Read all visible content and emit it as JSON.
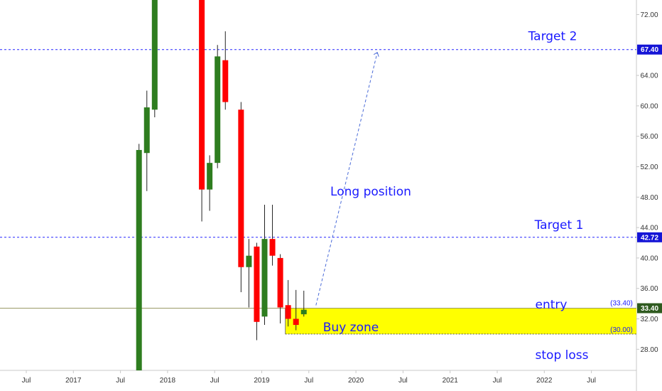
{
  "chart_data": {
    "type": "candlestick",
    "colors": {
      "up": "#2e7d1f",
      "down": "#ff0000",
      "level_line": "#2626ff",
      "annotation_text": "#1a1aff",
      "buy_zone_fill": "#ffff00",
      "price_line": "#999966",
      "badge_bg": "#1414d6",
      "current_badge_bg": "#2e5a1f"
    },
    "x_axis": {
      "ticks": [
        "Jul",
        "2017",
        "Jul",
        "2018",
        "Jul",
        "2019",
        "Jul",
        "2020",
        "Jul",
        "2021",
        "Jul",
        "2022",
        "Jul"
      ]
    },
    "y_axis": {
      "ticks": [
        "28.00",
        "32.00",
        "36.00",
        "40.00",
        "44.00",
        "48.00",
        "52.00",
        "56.00",
        "60.00",
        "64.00",
        "72.00"
      ],
      "range": [
        26,
        77
      ]
    },
    "candles": [
      {
        "x": "2017-09",
        "open": 10.0,
        "close": 54.2,
        "high": 55.0,
        "low": 10.0
      },
      {
        "x": "2017-10",
        "open": 53.8,
        "close": 59.8,
        "high": 62.0,
        "low": 48.8
      },
      {
        "x": "2017-11",
        "open": 59.5,
        "close": 80.0,
        "high": 82.0,
        "low": 58.5
      },
      {
        "x": "2018-05",
        "open": 76.0,
        "close": 49.0,
        "high": 78.0,
        "low": 44.8
      },
      {
        "x": "2018-06",
        "open": 49.0,
        "close": 52.5,
        "high": 53.5,
        "low": 46.2
      },
      {
        "x": "2018-07",
        "open": 52.5,
        "close": 66.5,
        "high": 68.0,
        "low": 51.8
      },
      {
        "x": "2018-08",
        "open": 66.0,
        "close": 60.5,
        "high": 69.8,
        "low": 59.5
      },
      {
        "x": "2018-10",
        "open": 59.5,
        "close": 38.8,
        "high": 60.5,
        "low": 35.5
      },
      {
        "x": "2018-11",
        "open": 38.8,
        "close": 40.3,
        "high": 42.5,
        "low": 33.5
      },
      {
        "x": "2018-12",
        "open": 41.5,
        "close": 31.6,
        "high": 42.0,
        "low": 29.2
      },
      {
        "x": "2019-01",
        "open": 32.3,
        "close": 42.5,
        "high": 47.0,
        "low": 31.2
      },
      {
        "x": "2019-02",
        "open": 42.5,
        "close": 40.3,
        "high": 47.0,
        "low": 39.0
      },
      {
        "x": "2019-03",
        "open": 40.0,
        "close": 33.5,
        "high": 40.5,
        "low": 31.4
      },
      {
        "x": "2019-04",
        "open": 33.8,
        "close": 32.0,
        "high": 37.1,
        "low": 31.0
      },
      {
        "x": "2019-05",
        "open": 32.0,
        "close": 31.2,
        "high": 35.8,
        "low": 30.5
      },
      {
        "x": "2019-06",
        "open": 32.6,
        "close": 33.2,
        "high": 35.7,
        "low": 32.3
      }
    ],
    "levels": [
      {
        "value": 67.4,
        "label": "67.40",
        "annotation": "Target 2"
      },
      {
        "value": 42.72,
        "label": "42.72",
        "annotation": "Target 1"
      }
    ],
    "current_price": {
      "value": 33.4,
      "label": "33.40"
    },
    "buy_zone": {
      "from": "2019-04",
      "top": 33.4,
      "bottom": 30.0,
      "label": "Buy zone",
      "top_label": "(33.40)",
      "bottom_label": "(30.00)",
      "entry_label": "entry",
      "stop_label": "stop loss"
    },
    "projection": {
      "start": {
        "x": "2019-07",
        "y": 33.4
      },
      "end": {
        "x": "2020-03",
        "y": 67.4
      },
      "label": "Long position"
    }
  }
}
